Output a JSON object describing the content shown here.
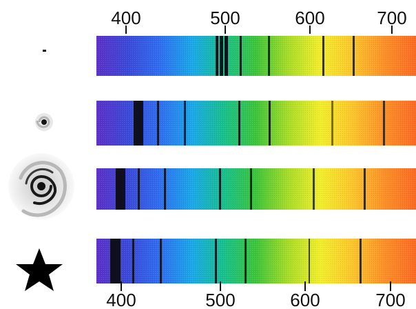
{
  "spectrum": {
    "gradient_stops": [
      "#5b30c8",
      "#3a4ad8",
      "#2f6ef0",
      "#1aa8e8",
      "#18c08a",
      "#3ec43a",
      "#a8dc28",
      "#f2ee2c",
      "#fcc62c",
      "#fc9028",
      "#fc6a24"
    ],
    "line_color": "#111111",
    "top_axis": {
      "ticks": [
        "400",
        "500",
        "600",
        "700"
      ]
    },
    "bottom_axis": {
      "ticks": [
        "400",
        "500",
        "600",
        "700"
      ]
    },
    "objects": [
      {
        "icon": "tiny-dot-icon",
        "description_color": "#111111"
      },
      {
        "icon": "small-spiral-galaxy-icon",
        "description_color": "#222222"
      },
      {
        "icon": "large-spiral-galaxy-icon",
        "description_color": "#222222"
      },
      {
        "icon": "star-icon",
        "description_color": "#000000"
      }
    ]
  }
}
